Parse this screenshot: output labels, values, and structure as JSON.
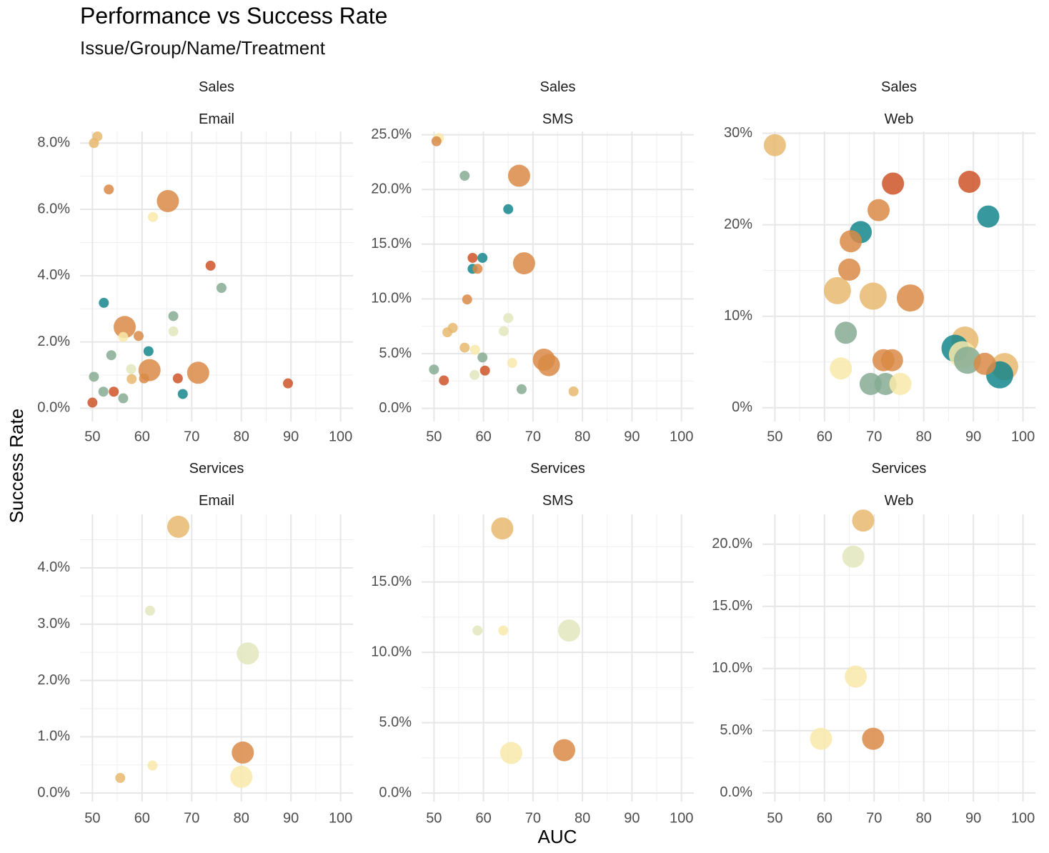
{
  "chart_data": {
    "type": "scatter",
    "title": "Performance vs Success Rate",
    "subtitle": "Issue/Group/Name/Treatment",
    "xlabel": "AUC",
    "ylabel": "Success Rate",
    "colors": {
      "teal": "#14868c",
      "sage": "#86ab94",
      "pale": "#e3e6bd",
      "cream": "#f8e9aa",
      "sand": "#e8b86e",
      "orange": "#d98a45",
      "rust": "#cc5328"
    },
    "x_ticks": [
      "50",
      "60",
      "70",
      "80",
      "90",
      "100"
    ],
    "panels": [
      {
        "group": "Sales",
        "channel": "Email",
        "ylim": [
          -0.004,
          0.0835
        ],
        "y_ticks": [
          0,
          0.02,
          0.04,
          0.06,
          0.08
        ],
        "y_tick_labels": [
          "0.0%",
          "2.0%",
          "4.0%",
          "6.0%",
          "8.0%"
        ],
        "points": [
          {
            "x": 50.3,
            "y": 0.08,
            "size": 1,
            "color": "sand"
          },
          {
            "x": 51.0,
            "y": 0.082,
            "size": 1,
            "color": "sand"
          },
          {
            "x": 53.3,
            "y": 0.066,
            "size": 1,
            "color": "orange"
          },
          {
            "x": 65.2,
            "y": 0.0625,
            "size": 3,
            "color": "orange"
          },
          {
            "x": 62.2,
            "y": 0.0577,
            "size": 1,
            "color": "cream"
          },
          {
            "x": 73.8,
            "y": 0.043,
            "size": 1,
            "color": "rust"
          },
          {
            "x": 76.0,
            "y": 0.0363,
            "size": 1,
            "color": "sage"
          },
          {
            "x": 52.3,
            "y": 0.0318,
            "size": 1,
            "color": "teal"
          },
          {
            "x": 66.3,
            "y": 0.0278,
            "size": 1,
            "color": "sage"
          },
          {
            "x": 56.5,
            "y": 0.0245,
            "size": 3,
            "color": "orange"
          },
          {
            "x": 66.3,
            "y": 0.0232,
            "size": 1,
            "color": "pale"
          },
          {
            "x": 56.2,
            "y": 0.0215,
            "size": 1,
            "color": "cream"
          },
          {
            "x": 59.3,
            "y": 0.0218,
            "size": 1,
            "color": "orange"
          },
          {
            "x": 61.3,
            "y": 0.0172,
            "size": 1,
            "color": "teal"
          },
          {
            "x": 53.8,
            "y": 0.016,
            "size": 1,
            "color": "sage"
          },
          {
            "x": 57.8,
            "y": 0.0118,
            "size": 1,
            "color": "pale"
          },
          {
            "x": 61.5,
            "y": 0.0115,
            "size": 3,
            "color": "orange"
          },
          {
            "x": 71.3,
            "y": 0.0107,
            "size": 3,
            "color": "orange"
          },
          {
            "x": 60.4,
            "y": 0.009,
            "size": 1,
            "color": "orange"
          },
          {
            "x": 57.9,
            "y": 0.0088,
            "size": 1,
            "color": "sand"
          },
          {
            "x": 67.2,
            "y": 0.009,
            "size": 1,
            "color": "rust"
          },
          {
            "x": 50.3,
            "y": 0.0095,
            "size": 1,
            "color": "sage"
          },
          {
            "x": 89.4,
            "y": 0.0075,
            "size": 1,
            "color": "rust"
          },
          {
            "x": 52.2,
            "y": 0.005,
            "size": 1,
            "color": "sage"
          },
          {
            "x": 54.3,
            "y": 0.005,
            "size": 1,
            "color": "rust"
          },
          {
            "x": 68.2,
            "y": 0.0043,
            "size": 1,
            "color": "teal"
          },
          {
            "x": 56.2,
            "y": 0.003,
            "size": 1,
            "color": "sage"
          },
          {
            "x": 50.0,
            "y": 0.0017,
            "size": 1,
            "color": "rust"
          }
        ]
      },
      {
        "group": "Sales",
        "channel": "SMS",
        "ylim": [
          -0.012,
          0.253
        ],
        "y_ticks": [
          0,
          0.05,
          0.1,
          0.15,
          0.2,
          0.25
        ],
        "y_tick_labels": [
          "0.0%",
          "5.0%",
          "10.0%",
          "15.0%",
          "20.0%",
          "25.0%"
        ],
        "points": [
          {
            "x": 51.0,
            "y": 0.247,
            "size": 1,
            "color": "cream"
          },
          {
            "x": 50.5,
            "y": 0.244,
            "size": 1,
            "color": "orange"
          },
          {
            "x": 56.2,
            "y": 0.2125,
            "size": 1,
            "color": "sage"
          },
          {
            "x": 67.2,
            "y": 0.2125,
            "size": 3,
            "color": "orange"
          },
          {
            "x": 65.0,
            "y": 0.182,
            "size": 1,
            "color": "teal"
          },
          {
            "x": 57.8,
            "y": 0.1375,
            "size": 1,
            "color": "rust"
          },
          {
            "x": 59.8,
            "y": 0.1375,
            "size": 1,
            "color": "teal"
          },
          {
            "x": 68.2,
            "y": 0.1325,
            "size": 3,
            "color": "orange"
          },
          {
            "x": 57.8,
            "y": 0.1275,
            "size": 1,
            "color": "teal"
          },
          {
            "x": 58.8,
            "y": 0.1275,
            "size": 1,
            "color": "orange"
          },
          {
            "x": 56.7,
            "y": 0.0995,
            "size": 1,
            "color": "orange"
          },
          {
            "x": 65.0,
            "y": 0.0825,
            "size": 1,
            "color": "pale"
          },
          {
            "x": 53.8,
            "y": 0.0735,
            "size": 1,
            "color": "sand"
          },
          {
            "x": 52.7,
            "y": 0.0695,
            "size": 1,
            "color": "sand"
          },
          {
            "x": 64.1,
            "y": 0.0705,
            "size": 1,
            "color": "pale"
          },
          {
            "x": 56.2,
            "y": 0.0555,
            "size": 1,
            "color": "sand"
          },
          {
            "x": 58.3,
            "y": 0.0535,
            "size": 1,
            "color": "cream"
          },
          {
            "x": 59.8,
            "y": 0.0465,
            "size": 1,
            "color": "sage"
          },
          {
            "x": 72.2,
            "y": 0.0445,
            "size": 3,
            "color": "orange"
          },
          {
            "x": 65.8,
            "y": 0.0415,
            "size": 1,
            "color": "cream"
          },
          {
            "x": 73.2,
            "y": 0.0395,
            "size": 3,
            "color": "orange"
          },
          {
            "x": 50.0,
            "y": 0.0355,
            "size": 1,
            "color": "sage"
          },
          {
            "x": 60.3,
            "y": 0.0345,
            "size": 1,
            "color": "rust"
          },
          {
            "x": 58.2,
            "y": 0.0305,
            "size": 1,
            "color": "pale"
          },
          {
            "x": 52.0,
            "y": 0.0255,
            "size": 1,
            "color": "rust"
          },
          {
            "x": 67.7,
            "y": 0.0175,
            "size": 1,
            "color": "sage"
          },
          {
            "x": 78.2,
            "y": 0.0155,
            "size": 1,
            "color": "sand"
          }
        ]
      },
      {
        "group": "Sales",
        "channel": "Web",
        "ylim": [
          -0.015,
          0.302
        ],
        "y_ticks": [
          0,
          0.1,
          0.2,
          0.3
        ],
        "y_tick_labels": [
          "0%",
          "10%",
          "20%",
          "30%"
        ],
        "points": [
          {
            "x": 50.0,
            "y": 0.287,
            "size": 3,
            "color": "sand"
          },
          {
            "x": 73.8,
            "y": 0.245,
            "size": 3,
            "color": "rust"
          },
          {
            "x": 89.2,
            "y": 0.247,
            "size": 3,
            "color": "rust"
          },
          {
            "x": 70.9,
            "y": 0.216,
            "size": 3,
            "color": "orange"
          },
          {
            "x": 93.0,
            "y": 0.209,
            "size": 3,
            "color": "teal"
          },
          {
            "x": 67.3,
            "y": 0.192,
            "size": 3,
            "color": "teal"
          },
          {
            "x": 65.3,
            "y": 0.182,
            "size": 3,
            "color": "orange"
          },
          {
            "x": 65.0,
            "y": 0.151,
            "size": 3,
            "color": "orange"
          },
          {
            "x": 62.6,
            "y": 0.128,
            "size": 4,
            "color": "sand"
          },
          {
            "x": 69.8,
            "y": 0.122,
            "size": 4,
            "color": "sand"
          },
          {
            "x": 77.3,
            "y": 0.12,
            "size": 4,
            "color": "orange"
          },
          {
            "x": 64.3,
            "y": 0.082,
            "size": 3,
            "color": "sage"
          },
          {
            "x": 88.3,
            "y": 0.074,
            "size": 4,
            "color": "sand"
          },
          {
            "x": 86.3,
            "y": 0.065,
            "size": 4,
            "color": "teal"
          },
          {
            "x": 87.8,
            "y": 0.058,
            "size": 4,
            "color": "cream"
          },
          {
            "x": 88.8,
            "y": 0.052,
            "size": 4,
            "color": "sage"
          },
          {
            "x": 71.9,
            "y": 0.052,
            "size": 3,
            "color": "orange"
          },
          {
            "x": 73.6,
            "y": 0.052,
            "size": 3,
            "color": "orange"
          },
          {
            "x": 92.3,
            "y": 0.048,
            "size": 3,
            "color": "orange"
          },
          {
            "x": 96.3,
            "y": 0.045,
            "size": 4,
            "color": "sand"
          },
          {
            "x": 63.3,
            "y": 0.043,
            "size": 3,
            "color": "cream"
          },
          {
            "x": 95.3,
            "y": 0.036,
            "size": 4,
            "color": "teal"
          },
          {
            "x": 69.3,
            "y": 0.026,
            "size": 3,
            "color": "sage"
          },
          {
            "x": 72.3,
            "y": 0.026,
            "size": 3,
            "color": "sage"
          },
          {
            "x": 75.3,
            "y": 0.026,
            "size": 3,
            "color": "cream"
          }
        ]
      },
      {
        "group": "Services",
        "channel": "Email",
        "ylim": [
          -0.0015,
          0.0495
        ],
        "y_ticks": [
          0,
          0.01,
          0.02,
          0.03,
          0.04
        ],
        "y_tick_labels": [
          "0.0%",
          "1.0%",
          "2.0%",
          "3.0%",
          "4.0%"
        ],
        "points": [
          {
            "x": 67.3,
            "y": 0.0473,
            "size": 3,
            "color": "sand"
          },
          {
            "x": 61.6,
            "y": 0.0324,
            "size": 1,
            "color": "pale"
          },
          {
            "x": 81.3,
            "y": 0.0248,
            "size": 3,
            "color": "pale"
          },
          {
            "x": 80.3,
            "y": 0.0072,
            "size": 3,
            "color": "orange"
          },
          {
            "x": 62.1,
            "y": 0.0049,
            "size": 1,
            "color": "cream"
          },
          {
            "x": 80.0,
            "y": 0.0029,
            "size": 3,
            "color": "cream"
          },
          {
            "x": 55.6,
            "y": 0.0027,
            "size": 1,
            "color": "sand"
          }
        ]
      },
      {
        "group": "Services",
        "channel": "SMS",
        "ylim": [
          -0.006,
          0.198
        ],
        "y_ticks": [
          0,
          0.05,
          0.1,
          0.15
        ],
        "y_tick_labels": [
          "0.0%",
          "5.0%",
          "10.0%",
          "15.0%"
        ],
        "points": [
          {
            "x": 63.8,
            "y": 0.188,
            "size": 3,
            "color": "sand"
          },
          {
            "x": 58.8,
            "y": 0.1155,
            "size": 1,
            "color": "pale"
          },
          {
            "x": 64.0,
            "y": 0.1155,
            "size": 1,
            "color": "cream"
          },
          {
            "x": 77.3,
            "y": 0.1155,
            "size": 3,
            "color": "pale"
          },
          {
            "x": 76.3,
            "y": 0.0305,
            "size": 3,
            "color": "orange"
          },
          {
            "x": 65.6,
            "y": 0.0285,
            "size": 3,
            "color": "cream"
          }
        ]
      },
      {
        "group": "Services",
        "channel": "Web",
        "ylim": [
          -0.007,
          0.224
        ],
        "y_ticks": [
          0,
          0.05,
          0.1,
          0.15,
          0.2
        ],
        "y_tick_labels": [
          "0.0%",
          "5.0%",
          "10.0%",
          "15.0%",
          "20.0%"
        ],
        "points": [
          {
            "x": 67.8,
            "y": 0.219,
            "size": 3,
            "color": "sand"
          },
          {
            "x": 65.8,
            "y": 0.19,
            "size": 3,
            "color": "pale"
          },
          {
            "x": 66.3,
            "y": 0.0935,
            "size": 3,
            "color": "cream"
          },
          {
            "x": 59.3,
            "y": 0.0435,
            "size": 3,
            "color": "cream"
          },
          {
            "x": 69.8,
            "y": 0.0435,
            "size": 3,
            "color": "orange"
          }
        ]
      }
    ]
  }
}
